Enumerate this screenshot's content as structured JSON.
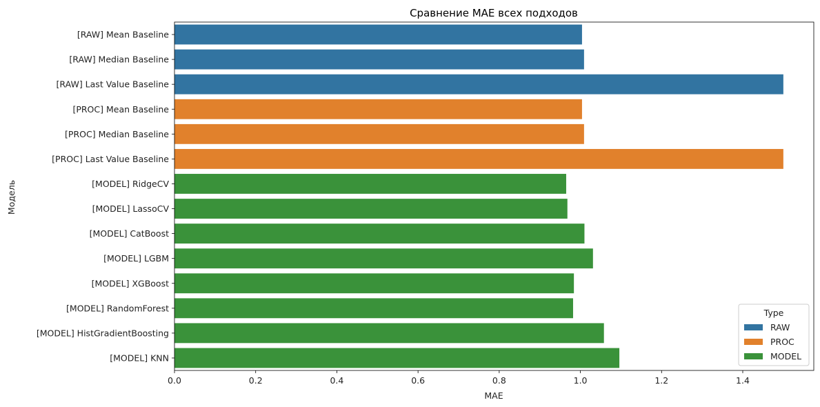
{
  "chart_data": {
    "type": "bar",
    "orientation": "horizontal",
    "title": "Сравнение MAE всех подходов",
    "xlabel": "MAE",
    "ylabel": "Модель",
    "xlim": [
      0,
      1.575
    ],
    "xticks": [
      "0.0",
      "0.2",
      "0.4",
      "0.6",
      "0.8",
      "1.0",
      "1.2",
      "1.4"
    ],
    "grid": false,
    "legend": {
      "title": "Type",
      "placement": "lower-right",
      "entries": [
        {
          "label": "RAW",
          "color": "#3274a1"
        },
        {
          "label": "PROC",
          "color": "#e1812c"
        },
        {
          "label": "MODEL",
          "color": "#3a923a"
        }
      ]
    },
    "categories": [
      "[RAW] Mean Baseline",
      "[RAW] Median Baseline",
      "[RAW] Last Value Baseline",
      "[PROC] Mean Baseline",
      "[PROC] Median Baseline",
      "[PROC] Last Value Baseline",
      "[MODEL] RidgeCV",
      "[MODEL] LassoCV",
      "[MODEL] CatBoost",
      "[MODEL] LGBM",
      "[MODEL] XGBoost",
      "[MODEL] RandomForest",
      "[MODEL] HistGradientBoosting",
      "[MODEL] KNN"
    ],
    "values": [
      1.004,
      1.009,
      1.5,
      1.004,
      1.009,
      1.5,
      0.965,
      0.968,
      1.01,
      1.031,
      0.984,
      0.982,
      1.058,
      1.096
    ],
    "types": [
      "RAW",
      "RAW",
      "RAW",
      "PROC",
      "PROC",
      "PROC",
      "MODEL",
      "MODEL",
      "MODEL",
      "MODEL",
      "MODEL",
      "MODEL",
      "MODEL",
      "MODEL"
    ]
  }
}
